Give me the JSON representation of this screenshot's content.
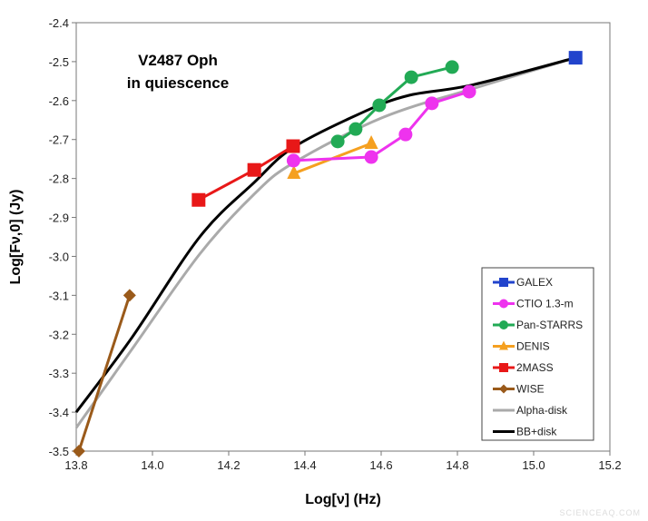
{
  "chart_data": {
    "type": "line",
    "title_lines": [
      "V2487 Oph",
      "in quiescence"
    ],
    "xlabel": "Log[ν] (Hz)",
    "ylabel": "Log[Fν,0] (Jy)",
    "xlim": [
      13.8,
      15.2
    ],
    "ylim": [
      -3.5,
      -2.4
    ],
    "xticks": [
      "13.8",
      "14.0",
      "14.2",
      "14.4",
      "14.6",
      "14.8",
      "15.0",
      "15.2"
    ],
    "yticks": [
      "-2.4",
      "-2.5",
      "-2.6",
      "-2.7",
      "-2.8",
      "-2.9",
      "-3.0",
      "-3.1",
      "-3.2",
      "-3.3",
      "-3.4",
      "-3.5"
    ],
    "grid": false,
    "legend_position": "bottom-right",
    "series": [
      {
        "name": "GALEX",
        "color": "#2244cc",
        "marker": "square",
        "x": [
          15.11
        ],
        "y": [
          -2.49
        ]
      },
      {
        "name": "CTIO 1.3-m",
        "color": "#ee33ee",
        "marker": "circle",
        "x": [
          14.37,
          14.574,
          14.664,
          14.733,
          14.831
        ],
        "y": [
          -2.754,
          -2.745,
          -2.687,
          -2.607,
          -2.577
        ]
      },
      {
        "name": "Pan-STARRS",
        "color": "#22aa55",
        "marker": "circle",
        "x": [
          14.486,
          14.533,
          14.595,
          14.679,
          14.786
        ],
        "y": [
          -2.705,
          -2.673,
          -2.612,
          -2.54,
          -2.514
        ]
      },
      {
        "name": "DENIS",
        "color": "#f5a020",
        "marker": "triangle",
        "x": [
          14.371,
          14.574
        ],
        "y": [
          -2.787,
          -2.71
        ]
      },
      {
        "name": "2MASS",
        "color": "#e81818",
        "marker": "square",
        "x": [
          14.121,
          14.267,
          14.369
        ],
        "y": [
          -2.855,
          -2.778,
          -2.717
        ]
      },
      {
        "name": "WISE",
        "color": "#9a5a1a",
        "marker": "diamond",
        "x": [
          13.807,
          13.94
        ],
        "y": [
          -3.5,
          -3.1
        ]
      },
      {
        "name": "Alpha-disk",
        "color": "#aaaaaa",
        "marker": "none",
        "x": [
          13.8,
          13.945,
          14.124,
          14.267,
          14.37,
          14.6,
          14.838,
          15.11
        ],
        "y": [
          -3.44,
          -3.24,
          -2.994,
          -2.84,
          -2.76,
          -2.645,
          -2.57,
          -2.49
        ]
      },
      {
        "name": "BB+disk",
        "color": "#000000",
        "marker": "none",
        "x": [
          13.8,
          13.945,
          14.124,
          14.267,
          14.37,
          14.552,
          14.671,
          14.838,
          15.11
        ],
        "y": [
          -3.4,
          -3.21,
          -2.95,
          -2.81,
          -2.72,
          -2.63,
          -2.587,
          -2.56,
          -2.49
        ]
      }
    ]
  },
  "watermark": "SCIENCEAQ.COM"
}
